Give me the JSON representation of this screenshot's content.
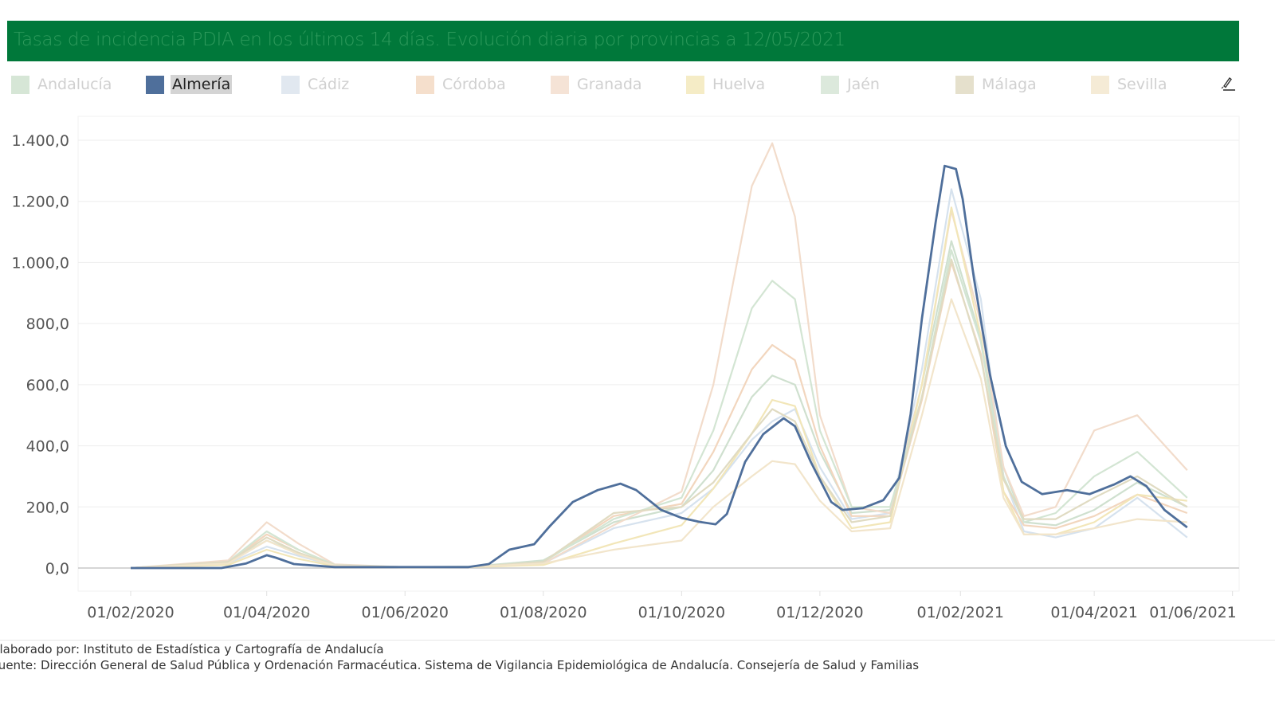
{
  "title": "Tasas de incidencia PDIA en los últimos 14 días. Evolución diaria por provincias a 12/05/2021",
  "colors": {
    "title_bg": "#00783a",
    "title_text": "#2e9a5c",
    "highlight": "#4f6f9b"
  },
  "legend": [
    {
      "label": "Andalucía",
      "color": "#d6e6d6"
    },
    {
      "label": "Almería",
      "color": "#4f6f9b",
      "active": true
    },
    {
      "label": "Cádiz",
      "color": "#e1e8f0"
    },
    {
      "label": "Córdoba",
      "color": "#f5dfcc"
    },
    {
      "label": "Granada",
      "color": "#f5e3d6"
    },
    {
      "label": "Huelva",
      "color": "#f5ecc6"
    },
    {
      "label": "Jaén",
      "color": "#dce9dc"
    },
    {
      "label": "Málaga",
      "color": "#e5e0cc"
    },
    {
      "label": "Sevilla",
      "color": "#f5ebd6"
    }
  ],
  "edit_icon": "pen-icon",
  "chart_data": {
    "type": "line",
    "title": "Tasas de incidencia PDIA en los últimos 14 días. Evolución diaria por provincias a 12/05/2021",
    "xlabel": "",
    "ylabel": "",
    "ylim": [
      0,
      1400
    ],
    "xlim": [
      "01/02/2020",
      "01/06/2021"
    ],
    "grid": true,
    "legend_position": "top",
    "y_ticks": [
      "0,0",
      "200,0",
      "400,0",
      "600,0",
      "800,0",
      "1.000,0",
      "1.200,0",
      "1.400,0"
    ],
    "y_tick_values": [
      0,
      200,
      400,
      600,
      800,
      1000,
      1200,
      1400
    ],
    "x_ticks": [
      "01/02/2020",
      "01/04/2020",
      "01/06/2020",
      "01/08/2020",
      "01/10/2020",
      "01/12/2020",
      "01/02/2021",
      "01/04/2021",
      "01/06/2021"
    ],
    "highlight_series": {
      "name": "Almería",
      "color": "#4f6f9b",
      "x": [
        "01/02/2020",
        "12/03/2020",
        "23/03/2020",
        "01/04/2020",
        "05/04/2020",
        "13/04/2020",
        "01/05/2020",
        "01/06/2020",
        "29/06/2020",
        "08/07/2020",
        "17/07/2020",
        "28/07/2020",
        "04/08/2020",
        "14/08/2020",
        "25/08/2020",
        "04/09/2020",
        "11/09/2020",
        "22/09/2020",
        "01/10/2020",
        "09/10/2020",
        "16/10/2020",
        "21/10/2020",
        "29/10/2020",
        "06/11/2020",
        "15/11/2020",
        "20/11/2020",
        "27/11/2020",
        "06/12/2020",
        "11/12/2020",
        "20/12/2020",
        "29/12/2020",
        "05/01/2021",
        "10/01/2021",
        "15/01/2021",
        "21/01/2021",
        "25/01/2021",
        "30/01/2021",
        "02/02/2021",
        "07/02/2021",
        "14/02/2021",
        "21/02/2021",
        "28/02/2021",
        "09/03/2021",
        "20/03/2021",
        "30/03/2021",
        "10/04/2021",
        "17/04/2021",
        "24/04/2021",
        "02/05/2021",
        "12/05/2021"
      ],
      "values": [
        0,
        0,
        15,
        42,
        34,
        13,
        3,
        3,
        3,
        13,
        60,
        78,
        138,
        216,
        255,
        276,
        255,
        190,
        164,
        151,
        143,
        177,
        347,
        438,
        490,
        464,
        347,
        216,
        190,
        196,
        222,
        295,
        503,
        816,
        1129,
        1316,
        1306,
        1207,
        946,
        633,
        399,
        282,
        242,
        255,
        242,
        274,
        300,
        268,
        190,
        133
      ]
    },
    "x": [
      "01/02/2020",
      "15/03/2020",
      "01/04/2020",
      "15/04/2020",
      "01/05/2020",
      "01/06/2020",
      "01/07/2020",
      "01/08/2020",
      "01/09/2020",
      "01/10/2020",
      "15/10/2020",
      "01/11/2020",
      "10/11/2020",
      "20/11/2020",
      "01/12/2020",
      "15/12/2020",
      "01/01/2021",
      "15/01/2021",
      "28/01/2021",
      "10/02/2021",
      "20/02/2021",
      "01/03/2021",
      "15/03/2021",
      "01/04/2021",
      "20/04/2021",
      "12/05/2021"
    ],
    "series": [
      {
        "name": "Andalucía",
        "color": "#cfe0cf",
        "values": [
          0,
          20,
          90,
          50,
          10,
          3,
          5,
          25,
          150,
          200,
          320,
          560,
          630,
          600,
          380,
          180,
          190,
          600,
          1070,
          750,
          330,
          150,
          140,
          190,
          280,
          200
        ]
      },
      {
        "name": "Cádiz",
        "color": "#d6e2ee",
        "values": [
          0,
          15,
          70,
          40,
          8,
          2,
          4,
          15,
          130,
          180,
          260,
          420,
          480,
          520,
          330,
          160,
          180,
          650,
          1240,
          880,
          300,
          120,
          100,
          130,
          230,
          100
        ]
      },
      {
        "name": "Córdoba",
        "color": "#f2d6be",
        "values": [
          0,
          20,
          110,
          60,
          10,
          2,
          4,
          20,
          170,
          210,
          380,
          650,
          730,
          680,
          400,
          170,
          170,
          550,
          1000,
          700,
          250,
          140,
          130,
          170,
          240,
          180
        ]
      },
      {
        "name": "Granada",
        "color": "#f2dccb",
        "values": [
          0,
          25,
          150,
          80,
          12,
          3,
          4,
          15,
          140,
          250,
          600,
          1250,
          1390,
          1150,
          500,
          200,
          180,
          600,
          1170,
          800,
          330,
          170,
          200,
          450,
          500,
          320
        ]
      },
      {
        "name": "Huelva",
        "color": "#f2e6b8",
        "values": [
          0,
          10,
          60,
          30,
          6,
          2,
          3,
          10,
          80,
          140,
          260,
          440,
          550,
          530,
          300,
          130,
          150,
          600,
          1180,
          760,
          250,
          110,
          110,
          150,
          240,
          220
        ]
      },
      {
        "name": "Jaén",
        "color": "#d3e5d3",
        "values": [
          0,
          20,
          120,
          60,
          10,
          3,
          4,
          20,
          160,
          230,
          450,
          850,
          940,
          880,
          450,
          200,
          200,
          560,
          1040,
          740,
          300,
          150,
          180,
          300,
          380,
          230
        ]
      },
      {
        "name": "Málaga",
        "color": "#e0dbc2",
        "values": [
          0,
          20,
          100,
          50,
          9,
          2,
          4,
          20,
          180,
          200,
          280,
          440,
          520,
          480,
          300,
          150,
          170,
          560,
          1010,
          690,
          290,
          160,
          160,
          230,
          300,
          200
        ]
      },
      {
        "name": "Sevilla",
        "color": "#f2e5cb",
        "values": [
          0,
          15,
          90,
          45,
          8,
          2,
          4,
          15,
          60,
          90,
          200,
          300,
          350,
          340,
          220,
          120,
          130,
          500,
          880,
          620,
          230,
          110,
          110,
          130,
          160,
          150
        ]
      }
    ]
  },
  "footer": {
    "line1": "Elaborado por: Instituto de Estadística y Cartografía de Andalucía",
    "line2": "Fuente: Dirección General de Salud Pública y Ordenación Farmacéutica. Sistema de Vigilancia Epidemiológica de Andalucía. Consejería de Salud y Familias"
  }
}
